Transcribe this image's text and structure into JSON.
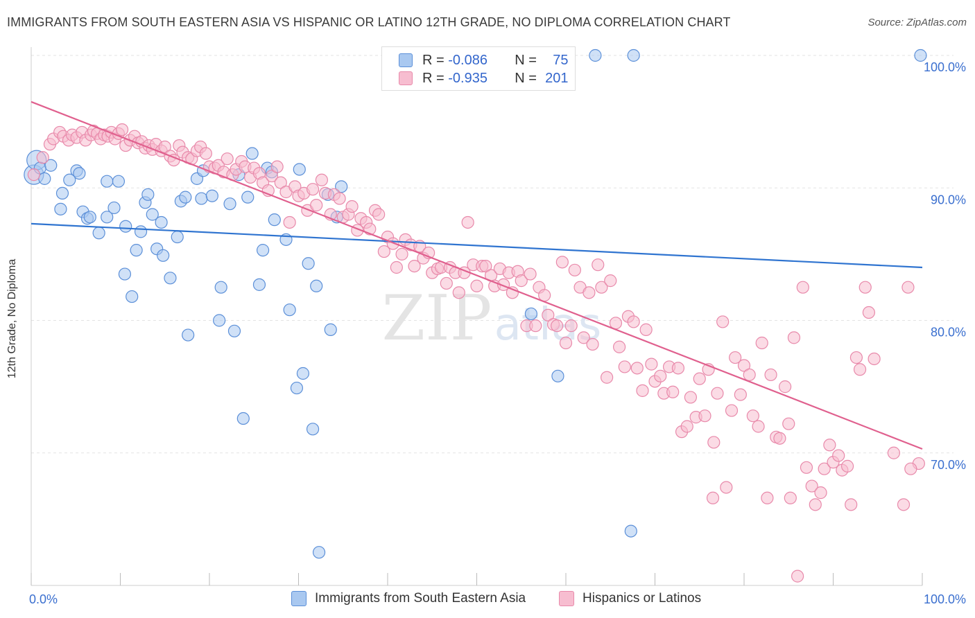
{
  "title": "IMMIGRANTS FROM SOUTH EASTERN ASIA VS HISPANIC OR LATINO 12TH GRADE, NO DIPLOMA CORRELATION CHART",
  "source": "Source: ZipAtlas.com",
  "legend": {
    "r_label": "R =",
    "n_label": "N =",
    "blue": {
      "r": "-0.086",
      "n": "75"
    },
    "pink": {
      "r": "-0.935",
      "n": "201"
    }
  },
  "colors": {
    "blue_fill": "#a9c8f0",
    "blue_stroke": "#5b8fd8",
    "blue_line": "#2f74d0",
    "pink_fill": "#f7bdd0",
    "pink_stroke": "#e889aa",
    "pink_line": "#e0608e",
    "tick_label": "#3a6fcf"
  },
  "watermark": {
    "zip": "ZIP",
    "atlas": "atlas"
  },
  "chart_data": {
    "type": "scatter",
    "xlabel": "",
    "ylabel": "12th Grade, No Diploma",
    "xlim": [
      0,
      100
    ],
    "ylim": [
      60,
      100
    ],
    "x_tick_labels": [
      {
        "x": 0,
        "label": "0.0%"
      },
      {
        "x": 100,
        "label": "100.0%"
      }
    ],
    "y_tick_labels": [
      {
        "y": 100,
        "label": "100.0%"
      },
      {
        "y": 90,
        "label": "90.0%"
      },
      {
        "y": 80,
        "label": "80.0%"
      },
      {
        "y": 70,
        "label": "70.0%"
      }
    ],
    "grid": true,
    "legend_position": "top-center",
    "series": [
      {
        "name": "Immigrants from South Eastern Asia",
        "color": "#a9c8f0",
        "trend": {
          "x": [
            0,
            100
          ],
          "y": [
            87.3,
            84.0
          ]
        },
        "points": [
          [
            0.3,
            91.0
          ],
          [
            0.6,
            92.1
          ],
          [
            1.0,
            91.5
          ],
          [
            1.5,
            90.7
          ],
          [
            2.2,
            91.7
          ],
          [
            3.3,
            88.4
          ],
          [
            3.5,
            89.6
          ],
          [
            4.3,
            90.6
          ],
          [
            5.1,
            91.3
          ],
          [
            5.4,
            91.1
          ],
          [
            5.8,
            88.2
          ],
          [
            6.3,
            87.7
          ],
          [
            6.6,
            87.8
          ],
          [
            7.6,
            86.6
          ],
          [
            8.5,
            87.8
          ],
          [
            8.5,
            90.5
          ],
          [
            9.3,
            88.5
          ],
          [
            9.8,
            90.5
          ],
          [
            10.5,
            83.5
          ],
          [
            10.6,
            87.1
          ],
          [
            11.3,
            81.8
          ],
          [
            11.8,
            85.3
          ],
          [
            12.3,
            86.7
          ],
          [
            12.8,
            88.9
          ],
          [
            13.1,
            89.5
          ],
          [
            13.6,
            88.0
          ],
          [
            14.1,
            85.4
          ],
          [
            14.6,
            87.4
          ],
          [
            14.8,
            84.9
          ],
          [
            15.6,
            83.2
          ],
          [
            16.4,
            86.3
          ],
          [
            16.8,
            89.0
          ],
          [
            17.3,
            89.3
          ],
          [
            17.6,
            78.9
          ],
          [
            18.6,
            90.7
          ],
          [
            19.1,
            89.2
          ],
          [
            19.3,
            91.3
          ],
          [
            20.3,
            89.4
          ],
          [
            21.1,
            80.0
          ],
          [
            21.3,
            82.5
          ],
          [
            22.3,
            88.8
          ],
          [
            22.8,
            79.2
          ],
          [
            23.3,
            91.0
          ],
          [
            23.8,
            72.6
          ],
          [
            24.3,
            89.3
          ],
          [
            24.8,
            92.6
          ],
          [
            25.6,
            82.7
          ],
          [
            26.0,
            85.3
          ],
          [
            26.5,
            91.5
          ],
          [
            27.0,
            91.2
          ],
          [
            27.3,
            87.6
          ],
          [
            28.6,
            86.1
          ],
          [
            29.0,
            80.8
          ],
          [
            29.8,
            74.9
          ],
          [
            30.1,
            91.4
          ],
          [
            30.5,
            76.0
          ],
          [
            31.1,
            84.3
          ],
          [
            31.6,
            71.8
          ],
          [
            32.0,
            82.6
          ],
          [
            32.3,
            62.5
          ],
          [
            33.3,
            89.5
          ],
          [
            33.6,
            79.3
          ],
          [
            34.3,
            87.8
          ],
          [
            34.8,
            90.1
          ],
          [
            56.1,
            80.5
          ],
          [
            59.1,
            75.8
          ],
          [
            63.3,
            100.0
          ],
          [
            67.3,
            64.1
          ],
          [
            67.6,
            100.0
          ],
          [
            99.8,
            100.0
          ]
        ]
      },
      {
        "name": "Hispanics or Latinos",
        "color": "#f7bdd0",
        "trend": {
          "x": [
            0,
            100
          ],
          "y": [
            96.5,
            70.3
          ]
        },
        "points": [
          [
            0.3,
            91.0
          ],
          [
            1.3,
            92.3
          ],
          [
            2.1,
            93.3
          ],
          [
            2.5,
            93.7
          ],
          [
            3.2,
            94.2
          ],
          [
            3.6,
            93.9
          ],
          [
            4.2,
            93.6
          ],
          [
            4.6,
            94.0
          ],
          [
            5.1,
            93.8
          ],
          [
            5.7,
            94.2
          ],
          [
            6.1,
            93.6
          ],
          [
            6.7,
            94.0
          ],
          [
            7.0,
            94.3
          ],
          [
            7.4,
            94.1
          ],
          [
            7.8,
            93.7
          ],
          [
            8.2,
            94.0
          ],
          [
            8.6,
            93.9
          ],
          [
            9.0,
            94.2
          ],
          [
            9.4,
            93.7
          ],
          [
            9.8,
            94.1
          ],
          [
            10.2,
            94.4
          ],
          [
            10.6,
            93.2
          ],
          [
            11.1,
            93.6
          ],
          [
            11.6,
            93.9
          ],
          [
            12.0,
            93.4
          ],
          [
            12.4,
            93.5
          ],
          [
            12.8,
            93.0
          ],
          [
            13.2,
            93.2
          ],
          [
            13.6,
            92.9
          ],
          [
            14.0,
            93.3
          ],
          [
            14.6,
            92.8
          ],
          [
            15.0,
            93.1
          ],
          [
            15.6,
            92.4
          ],
          [
            16.0,
            92.1
          ],
          [
            16.6,
            93.2
          ],
          [
            17.0,
            92.7
          ],
          [
            17.6,
            92.3
          ],
          [
            18.0,
            92.2
          ],
          [
            18.6,
            92.8
          ],
          [
            19.0,
            93.1
          ],
          [
            19.6,
            92.6
          ],
          [
            20.0,
            91.6
          ],
          [
            20.6,
            91.5
          ],
          [
            21.0,
            91.7
          ],
          [
            21.6,
            91.2
          ],
          [
            22.0,
            92.2
          ],
          [
            22.6,
            91.0
          ],
          [
            23.0,
            91.4
          ],
          [
            23.6,
            92.0
          ],
          [
            24.0,
            91.6
          ],
          [
            24.6,
            90.8
          ],
          [
            25.0,
            91.5
          ],
          [
            25.6,
            91.1
          ],
          [
            26.0,
            90.4
          ],
          [
            26.6,
            89.8
          ],
          [
            27.0,
            90.9
          ],
          [
            27.6,
            91.6
          ],
          [
            28.0,
            90.4
          ],
          [
            28.6,
            89.7
          ],
          [
            29.0,
            87.4
          ],
          [
            29.6,
            90.1
          ],
          [
            30.0,
            89.4
          ],
          [
            30.6,
            89.6
          ],
          [
            31.0,
            88.3
          ],
          [
            31.6,
            89.9
          ],
          [
            32.0,
            88.7
          ],
          [
            32.6,
            90.6
          ],
          [
            33.0,
            89.6
          ],
          [
            33.6,
            88.0
          ],
          [
            34.0,
            89.5
          ],
          [
            34.6,
            89.2
          ],
          [
            35.0,
            87.8
          ],
          [
            35.6,
            88.0
          ],
          [
            36.0,
            88.6
          ],
          [
            36.6,
            86.8
          ],
          [
            37.0,
            87.7
          ],
          [
            37.6,
            87.4
          ],
          [
            38.0,
            86.9
          ],
          [
            38.6,
            88.3
          ],
          [
            39.0,
            88.0
          ],
          [
            39.6,
            85.2
          ],
          [
            40.0,
            86.3
          ],
          [
            40.6,
            85.8
          ],
          [
            41.0,
            84.0
          ],
          [
            41.6,
            85.0
          ],
          [
            42.0,
            86.1
          ],
          [
            42.6,
            85.7
          ],
          [
            43.0,
            84.1
          ],
          [
            43.6,
            85.6
          ],
          [
            44.0,
            84.7
          ],
          [
            44.6,
            85.1
          ],
          [
            45.0,
            83.6
          ],
          [
            45.6,
            83.9
          ],
          [
            46.0,
            84.0
          ],
          [
            46.6,
            82.8
          ],
          [
            47.0,
            84.0
          ],
          [
            47.6,
            83.6
          ],
          [
            48.0,
            82.1
          ],
          [
            48.6,
            83.6
          ],
          [
            49.0,
            87.4
          ],
          [
            49.6,
            84.2
          ],
          [
            50.0,
            82.6
          ],
          [
            50.6,
            84.1
          ],
          [
            51.0,
            84.1
          ],
          [
            51.6,
            83.4
          ],
          [
            52.0,
            82.6
          ],
          [
            52.6,
            83.9
          ],
          [
            53.0,
            82.7
          ],
          [
            53.6,
            83.6
          ],
          [
            54.0,
            82.1
          ],
          [
            54.6,
            83.7
          ],
          [
            55.0,
            83.0
          ],
          [
            55.6,
            79.6
          ],
          [
            56.0,
            83.5
          ],
          [
            56.6,
            79.6
          ],
          [
            57.0,
            82.5
          ],
          [
            57.6,
            81.9
          ],
          [
            58.0,
            80.4
          ],
          [
            58.6,
            79.7
          ],
          [
            59.0,
            79.6
          ],
          [
            59.6,
            84.4
          ],
          [
            60.0,
            78.3
          ],
          [
            60.6,
            79.6
          ],
          [
            61.0,
            83.8
          ],
          [
            61.6,
            82.5
          ],
          [
            62.0,
            78.7
          ],
          [
            62.6,
            82.1
          ],
          [
            63.0,
            78.2
          ],
          [
            63.6,
            84.2
          ],
          [
            64.0,
            82.5
          ],
          [
            64.6,
            75.7
          ],
          [
            65.0,
            83.0
          ],
          [
            65.6,
            79.8
          ],
          [
            66.0,
            78.0
          ],
          [
            66.6,
            76.5
          ],
          [
            67.0,
            80.3
          ],
          [
            67.6,
            79.9
          ],
          [
            68.0,
            76.4
          ],
          [
            68.6,
            74.7
          ],
          [
            69.0,
            79.3
          ],
          [
            69.6,
            76.7
          ],
          [
            70.0,
            75.4
          ],
          [
            70.6,
            75.8
          ],
          [
            71.0,
            74.5
          ],
          [
            71.6,
            76.5
          ],
          [
            72.0,
            74.6
          ],
          [
            72.6,
            76.4
          ],
          [
            73.0,
            71.6
          ],
          [
            73.6,
            72.0
          ],
          [
            74.0,
            74.2
          ],
          [
            74.6,
            72.7
          ],
          [
            75.0,
            75.6
          ],
          [
            75.6,
            72.8
          ],
          [
            76.0,
            76.3
          ],
          [
            76.6,
            70.8
          ],
          [
            77.0,
            74.5
          ],
          [
            77.6,
            79.9
          ],
          [
            78.0,
            67.4
          ],
          [
            78.6,
            73.2
          ],
          [
            79.0,
            77.2
          ],
          [
            79.6,
            74.4
          ],
          [
            80.0,
            76.6
          ],
          [
            80.6,
            75.9
          ],
          [
            81.0,
            72.8
          ],
          [
            81.6,
            72.0
          ],
          [
            82.0,
            78.3
          ],
          [
            82.6,
            66.6
          ],
          [
            83.0,
            75.9
          ],
          [
            83.6,
            71.2
          ],
          [
            84.0,
            71.1
          ],
          [
            84.6,
            75.0
          ],
          [
            85.0,
            72.2
          ],
          [
            85.6,
            78.7
          ],
          [
            86.0,
            60.7
          ],
          [
            86.6,
            82.5
          ],
          [
            87.0,
            68.9
          ],
          [
            87.6,
            67.5
          ],
          [
            88.0,
            66.1
          ],
          [
            88.6,
            67.0
          ],
          [
            89.0,
            68.8
          ],
          [
            89.6,
            70.6
          ],
          [
            90.0,
            69.3
          ],
          [
            90.6,
            69.8
          ],
          [
            91.0,
            68.7
          ],
          [
            91.6,
            69.0
          ],
          [
            92.0,
            66.1
          ],
          [
            92.6,
            77.2
          ],
          [
            93.0,
            76.3
          ],
          [
            93.6,
            82.5
          ],
          [
            94.0,
            80.6
          ],
          [
            94.6,
            77.1
          ],
          [
            99.6,
            69.2
          ],
          [
            76.5,
            66.6
          ],
          [
            85.2,
            66.6
          ],
          [
            97.9,
            66.1
          ],
          [
            98.7,
            68.8
          ],
          [
            96.8,
            70.0
          ],
          [
            98.4,
            82.5
          ]
        ]
      }
    ]
  }
}
